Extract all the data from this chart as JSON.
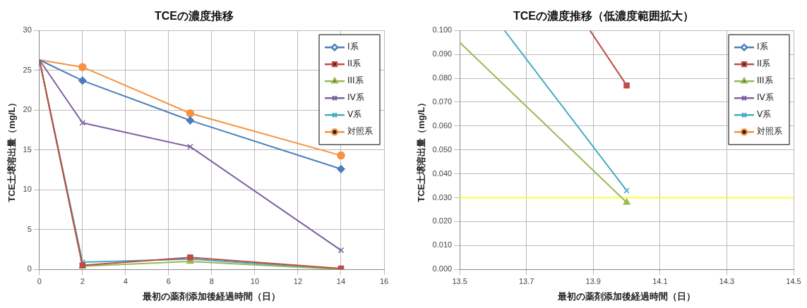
{
  "chart_data": [
    {
      "type": "line",
      "title": "TCEの濃度推移",
      "xlabel": "最初の薬剤添加後経過時間（日）",
      "ylabel": "TCE土壌溶出量（mg/L）",
      "xlim": [
        0,
        16
      ],
      "xticks": [
        0,
        2,
        4,
        6,
        8,
        10,
        12,
        14,
        16
      ],
      "ylim": [
        0,
        30
      ],
      "yticks": [
        0,
        5,
        10,
        15,
        20,
        25,
        30
      ],
      "grid": true,
      "legend": "top right",
      "x": [
        0,
        2,
        7,
        14
      ],
      "series": [
        {
          "name": "I系",
          "color": "#4a7ebb",
          "marker": "diamond",
          "values": [
            26.3,
            23.7,
            18.7,
            12.6
          ]
        },
        {
          "name": "II系",
          "color": "#be4b48",
          "marker": "square",
          "values": [
            26.3,
            0.5,
            1.5,
            0.1
          ]
        },
        {
          "name": "III系",
          "color": "#98b954",
          "marker": "triangle",
          "values": [
            26.3,
            0.4,
            1.0,
            0
          ]
        },
        {
          "name": "IV系",
          "color": "#7d60a0",
          "marker": "cross",
          "values": [
            26.3,
            18.4,
            15.4,
            2.4
          ]
        },
        {
          "name": "V系",
          "color": "#46aac5",
          "marker": "cross",
          "values": [
            26.3,
            0.9,
            1.3,
            0
          ]
        },
        {
          "name": "対照系",
          "color": "#f69240",
          "marker": "circle",
          "values": [
            26.3,
            25.4,
            19.6,
            14.3
          ]
        }
      ]
    },
    {
      "type": "line",
      "title": "TCEの濃度推移（低濃度範囲拡大）",
      "xlabel": "最初の薬剤添加後経過時間（日）",
      "ylabel": "TCE土壌溶出量（mg/L）",
      "xlim": [
        13.5,
        14.5
      ],
      "xticks": [
        13.5,
        13.7,
        13.9,
        14.1,
        14.3,
        14.5
      ],
      "ylim": [
        0,
        0.1
      ],
      "yticks": [
        {
          "value": 0,
          "label": "0.000"
        },
        {
          "value": 0.01,
          "label": "0.010"
        },
        {
          "value": 0.02,
          "label": "0.020"
        },
        {
          "value": 0.03,
          "label": "0.030"
        },
        {
          "value": 0.04,
          "label": "0.040"
        },
        {
          "value": 0.05,
          "label": "0.050"
        },
        {
          "value": 0.06,
          "label": "0.060"
        },
        {
          "value": 0.07,
          "label": "0.070"
        },
        {
          "value": 0.08,
          "label": "0.080"
        },
        {
          "value": 0.09,
          "label": "0.090"
        },
        {
          "value": 0.1,
          "label": "0.100"
        }
      ],
      "grid": true,
      "legend": "top right",
      "ref_lines": [
        {
          "axis": "y",
          "value": 0.03,
          "color": "#ffff00"
        }
      ],
      "series": [
        {
          "name": "I系",
          "color": "#4a7ebb",
          "marker": "diamond"
        },
        {
          "name": "II系",
          "color": "#be4b48",
          "marker": "square",
          "x": [
            13.89,
            14
          ],
          "values": [
            0.1,
            0.077
          ]
        },
        {
          "name": "III系",
          "color": "#98b954",
          "marker": "triangle",
          "x": [
            13.5,
            14
          ],
          "values": [
            0.095,
            0.028
          ]
        },
        {
          "name": "IV系",
          "color": "#7d60a0",
          "marker": "cross"
        },
        {
          "name": "V系",
          "color": "#46aac5",
          "marker": "cross",
          "x": [
            13.634,
            14
          ],
          "values": [
            0.1,
            0.033
          ]
        },
        {
          "name": "対照系",
          "color": "#f69240",
          "marker": "circle"
        }
      ]
    }
  ]
}
